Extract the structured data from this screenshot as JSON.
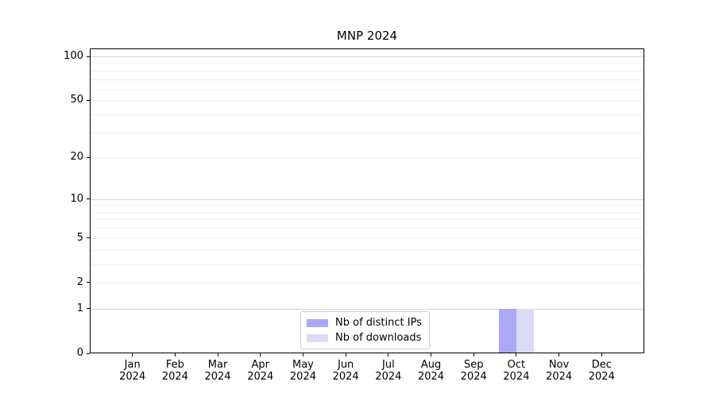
{
  "chart_data": {
    "type": "bar",
    "title": "MNP 2024",
    "xlabel": "",
    "ylabel": "",
    "yscale": "log1p-symlog",
    "ylim": [
      0,
      113.3
    ],
    "grid": "horizontal",
    "ytick_values": [
      0,
      1,
      2,
      5,
      10,
      20,
      50,
      100
    ],
    "ytick_labels": [
      "0",
      "1",
      "2",
      "5",
      "10",
      "20",
      "50",
      "100"
    ],
    "y_major_gridlines": [
      1,
      10,
      100
    ],
    "y_minor_gridlines": [
      2,
      3,
      4,
      5,
      6,
      7,
      8,
      9,
      20,
      30,
      40,
      50,
      60,
      70,
      80,
      90
    ],
    "grid_color_major": "#d4d4d4",
    "grid_color_minor": "#efefef",
    "x_ticks": [
      {
        "month": "Jan",
        "year": "2024"
      },
      {
        "month": "Feb",
        "year": "2024"
      },
      {
        "month": "Mar",
        "year": "2024"
      },
      {
        "month": "Apr",
        "year": "2024"
      },
      {
        "month": "May",
        "year": "2024"
      },
      {
        "month": "Jun",
        "year": "2024"
      },
      {
        "month": "Jul",
        "year": "2024"
      },
      {
        "month": "Aug",
        "year": "2024"
      },
      {
        "month": "Sep",
        "year": "2024"
      },
      {
        "month": "Oct",
        "year": "2024"
      },
      {
        "month": "Nov",
        "year": "2024"
      },
      {
        "month": "Dec",
        "year": "2024"
      }
    ],
    "series": [
      {
        "name": "Nb of distinct IPs",
        "color": "#a9a9f7",
        "values": [
          0,
          0,
          0,
          0,
          0,
          0,
          0,
          0,
          0,
          1,
          0,
          0
        ]
      },
      {
        "name": "Nb of downloads",
        "color": "#dbdbf7",
        "values": [
          0,
          0,
          0,
          0,
          0,
          0,
          0,
          0,
          0,
          1,
          0,
          0
        ]
      }
    ],
    "legend": {
      "position": "lower center"
    }
  }
}
